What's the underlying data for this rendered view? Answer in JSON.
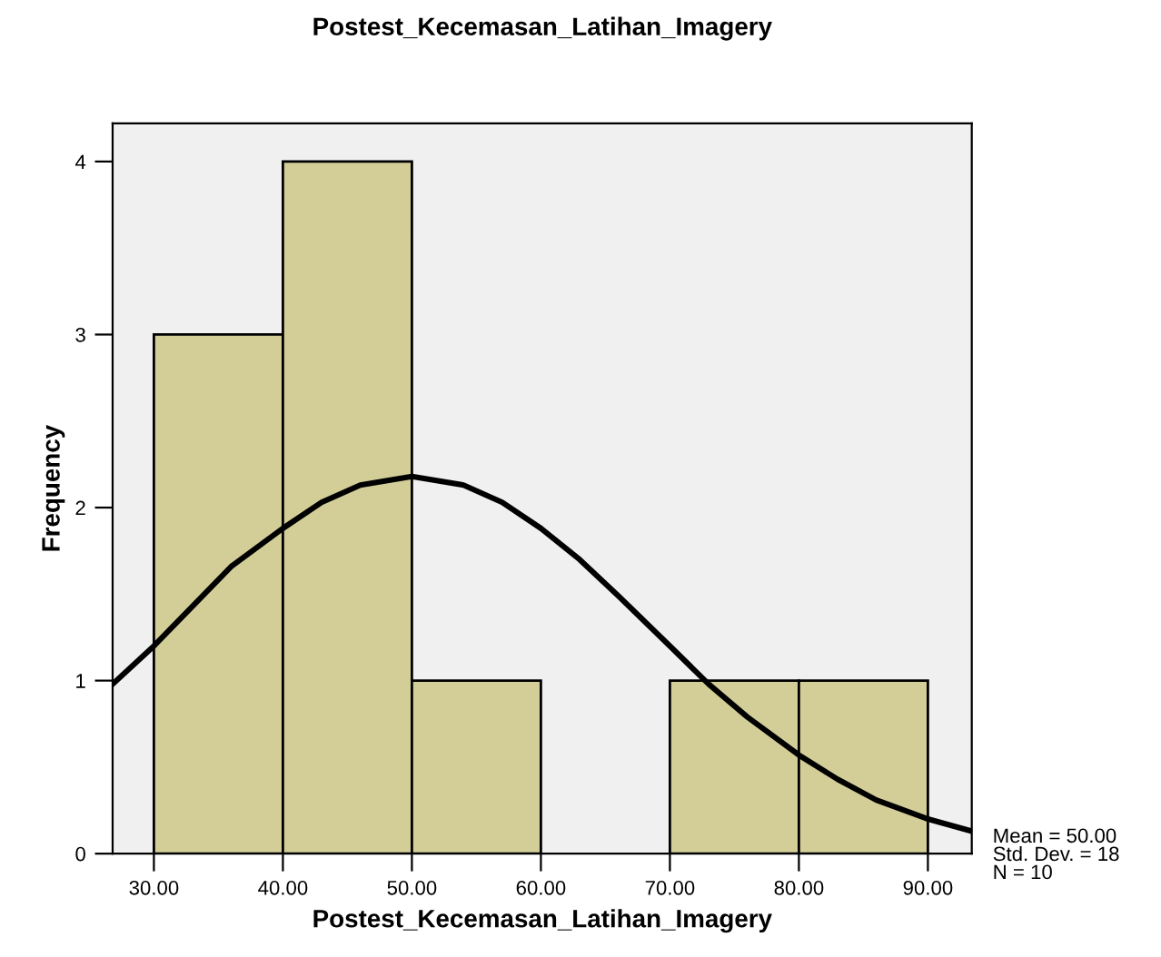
{
  "chart_data": {
    "type": "histogram",
    "title": "Postest_Kecemasan_Latihan_Imagery",
    "xlabel": "Postest_Kecemasan_Latihan_Imagery",
    "ylabel": "Frequency",
    "bins": [
      30,
      40,
      50,
      60,
      70,
      80,
      90
    ],
    "values": [
      3,
      4,
      1,
      0,
      1,
      1
    ],
    "color": "#d3ce98",
    "series": [
      {
        "type": "line",
        "color": "#000000",
        "x": [
          26.8,
          30,
          33,
          36,
          40,
          43,
          46,
          50,
          54,
          57,
          60,
          63,
          66,
          70,
          73,
          76,
          80,
          83,
          86,
          90,
          93.4
        ],
        "values": [
          0.98,
          1.2,
          1.43,
          1.66,
          1.88,
          2.03,
          2.13,
          2.18,
          2.13,
          2.03,
          1.88,
          1.7,
          1.49,
          1.2,
          0.98,
          0.79,
          0.57,
          0.43,
          0.31,
          0.2,
          0.13
        ]
      }
    ],
    "xlim": [
      26.8,
      93.4
    ],
    "ylim": [
      0,
      4.22
    ],
    "xticks": [
      {
        "value": 30,
        "label": "30.00"
      },
      {
        "value": 40,
        "label": "40.00"
      },
      {
        "value": 50,
        "label": "50.00"
      },
      {
        "value": 60,
        "label": "60.00"
      },
      {
        "value": 70,
        "label": "70.00"
      },
      {
        "value": 80,
        "label": "80.00"
      },
      {
        "value": 90,
        "label": "90.00"
      }
    ],
    "yticks": [
      0,
      1,
      2,
      3,
      4
    ],
    "grid": false,
    "legend": false,
    "annotations": [
      "Mean = 50.00",
      "Std. Dev. = 18",
      "N = 10"
    ]
  }
}
